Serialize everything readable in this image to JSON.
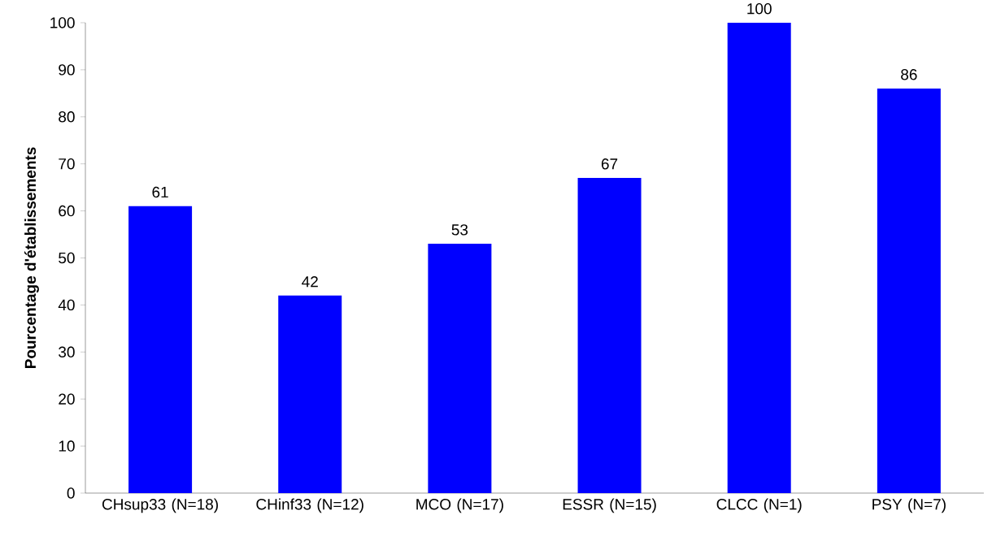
{
  "chart_data": {
    "type": "bar",
    "ylabel": "Pourcentage d'établissements",
    "categories": [
      "CHsup33 (N=18)",
      "CHinf33 (N=12)",
      "MCO (N=17)",
      "ESSR (N=15)",
      "CLCC (N=1)",
      "PSY (N=7)"
    ],
    "values": [
      61,
      42,
      53,
      67,
      100,
      86
    ],
    "color": "#0000ff",
    "ylim": [
      0,
      100
    ],
    "yticks": [
      0,
      10,
      20,
      30,
      40,
      50,
      60,
      70,
      80,
      90,
      100
    ],
    "grid": false,
    "data_labels": true
  }
}
